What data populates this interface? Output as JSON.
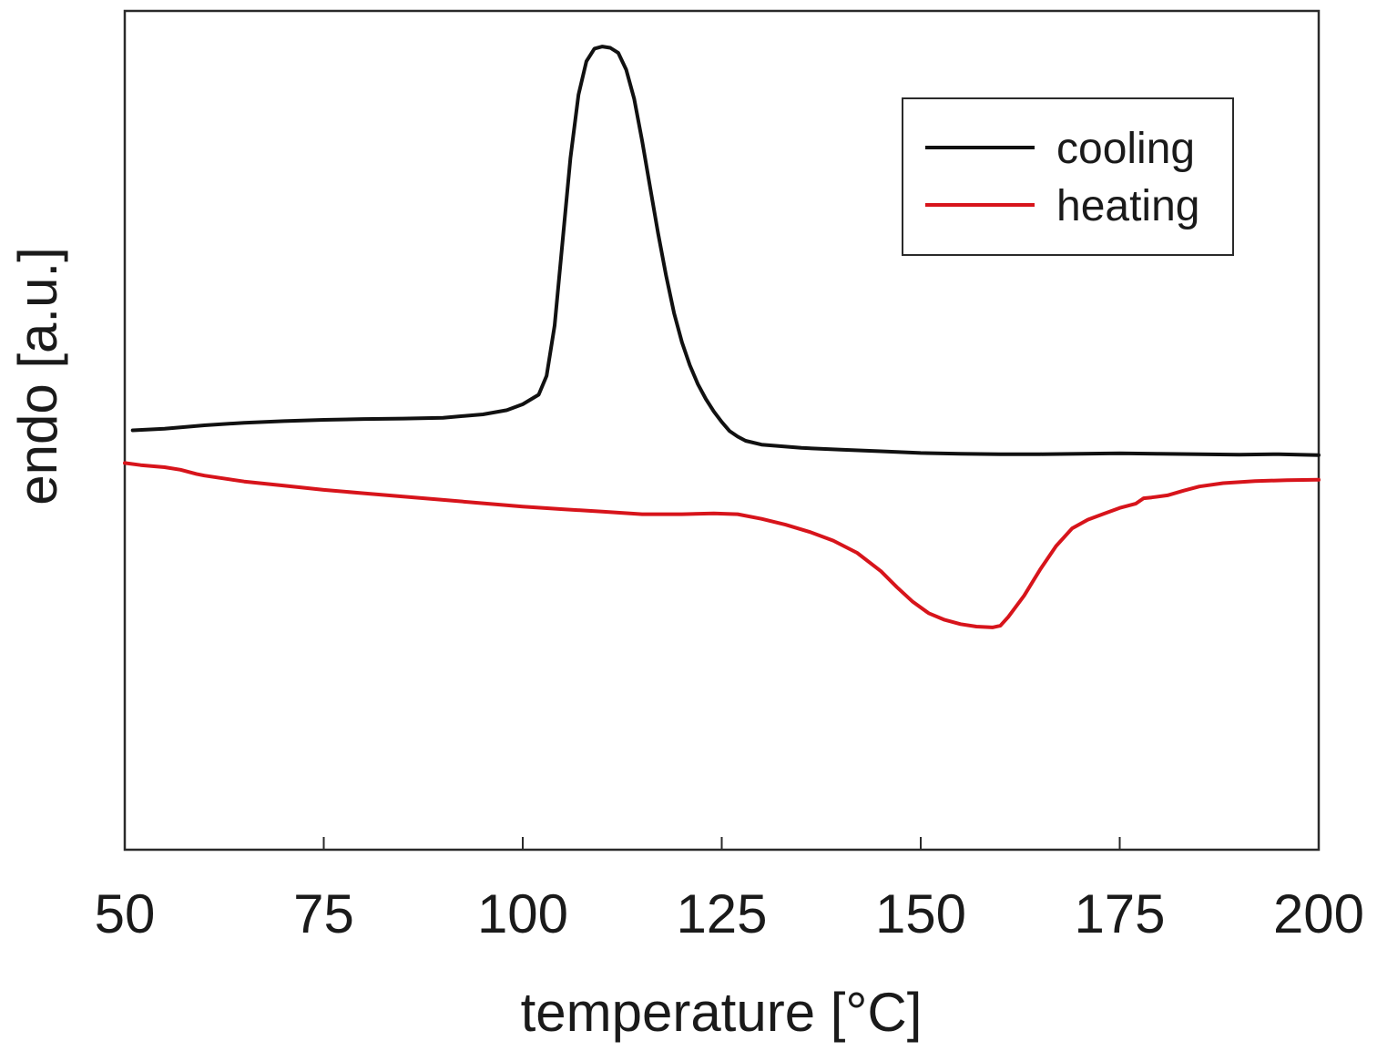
{
  "chart_data": {
    "type": "line",
    "title": "",
    "xlabel": "temperature [°C]",
    "ylabel": "endo [a.u.]",
    "xlim": [
      50,
      200
    ],
    "ylim": [
      -1.0,
      1.0
    ],
    "xticks": [
      50,
      75,
      100,
      125,
      150,
      175,
      200
    ],
    "yticks_shown": false,
    "grid": false,
    "legend_position": "top-right",
    "series": [
      {
        "name": "cooling",
        "color": "#111111",
        "points": [
          [
            51,
            0.0
          ],
          [
            55,
            0.004
          ],
          [
            60,
            0.012
          ],
          [
            65,
            0.018
          ],
          [
            70,
            0.022
          ],
          [
            75,
            0.025
          ],
          [
            80,
            0.027
          ],
          [
            85,
            0.028
          ],
          [
            90,
            0.03
          ],
          [
            95,
            0.038
          ],
          [
            98,
            0.048
          ],
          [
            100,
            0.062
          ],
          [
            102,
            0.085
          ],
          [
            103,
            0.13
          ],
          [
            104,
            0.25
          ],
          [
            105,
            0.45
          ],
          [
            106,
            0.65
          ],
          [
            107,
            0.8
          ],
          [
            108,
            0.88
          ],
          [
            109,
            0.91
          ],
          [
            110,
            0.915
          ],
          [
            111,
            0.912
          ],
          [
            112,
            0.9
          ],
          [
            113,
            0.86
          ],
          [
            114,
            0.79
          ],
          [
            115,
            0.69
          ],
          [
            116,
            0.58
          ],
          [
            117,
            0.47
          ],
          [
            118,
            0.37
          ],
          [
            119,
            0.28
          ],
          [
            120,
            0.21
          ],
          [
            121,
            0.155
          ],
          [
            122,
            0.11
          ],
          [
            123,
            0.075
          ],
          [
            124,
            0.045
          ],
          [
            125,
            0.02
          ],
          [
            126,
            -0.002
          ],
          [
            127,
            -0.015
          ],
          [
            128,
            -0.025
          ],
          [
            130,
            -0.034
          ],
          [
            135,
            -0.042
          ],
          [
            140,
            -0.046
          ],
          [
            145,
            -0.05
          ],
          [
            150,
            -0.054
          ],
          [
            155,
            -0.056
          ],
          [
            160,
            -0.057
          ],
          [
            165,
            -0.057
          ],
          [
            170,
            -0.056
          ],
          [
            175,
            -0.055
          ],
          [
            180,
            -0.056
          ],
          [
            185,
            -0.057
          ],
          [
            190,
            -0.058
          ],
          [
            195,
            -0.057
          ],
          [
            200,
            -0.059
          ]
        ]
      },
      {
        "name": "heating",
        "color": "#d7141b",
        "points": [
          [
            50,
            -0.078
          ],
          [
            52,
            -0.083
          ],
          [
            55,
            -0.088
          ],
          [
            57,
            -0.094
          ],
          [
            59,
            -0.104
          ],
          [
            60,
            -0.108
          ],
          [
            65,
            -0.122
          ],
          [
            70,
            -0.132
          ],
          [
            75,
            -0.142
          ],
          [
            80,
            -0.15
          ],
          [
            85,
            -0.158
          ],
          [
            90,
            -0.166
          ],
          [
            95,
            -0.174
          ],
          [
            100,
            -0.182
          ],
          [
            105,
            -0.188
          ],
          [
            110,
            -0.194
          ],
          [
            115,
            -0.2
          ],
          [
            120,
            -0.2
          ],
          [
            124,
            -0.198
          ],
          [
            127,
            -0.2
          ],
          [
            130,
            -0.211
          ],
          [
            133,
            -0.225
          ],
          [
            136,
            -0.242
          ],
          [
            139,
            -0.263
          ],
          [
            142,
            -0.292
          ],
          [
            145,
            -0.336
          ],
          [
            147,
            -0.374
          ],
          [
            149,
            -0.409
          ],
          [
            151,
            -0.436
          ],
          [
            153,
            -0.452
          ],
          [
            155,
            -0.462
          ],
          [
            157,
            -0.468
          ],
          [
            159,
            -0.47
          ],
          [
            160,
            -0.466
          ],
          [
            161,
            -0.445
          ],
          [
            163,
            -0.394
          ],
          [
            165,
            -0.332
          ],
          [
            167,
            -0.276
          ],
          [
            169,
            -0.234
          ],
          [
            171,
            -0.213
          ],
          [
            173,
            -0.199
          ],
          [
            175,
            -0.185
          ],
          [
            177,
            -0.175
          ],
          [
            178,
            -0.162
          ],
          [
            179,
            -0.16
          ],
          [
            181,
            -0.155
          ],
          [
            183,
            -0.144
          ],
          [
            185,
            -0.134
          ],
          [
            188,
            -0.126
          ],
          [
            192,
            -0.121
          ],
          [
            196,
            -0.119
          ],
          [
            200,
            -0.118
          ]
        ]
      }
    ]
  }
}
